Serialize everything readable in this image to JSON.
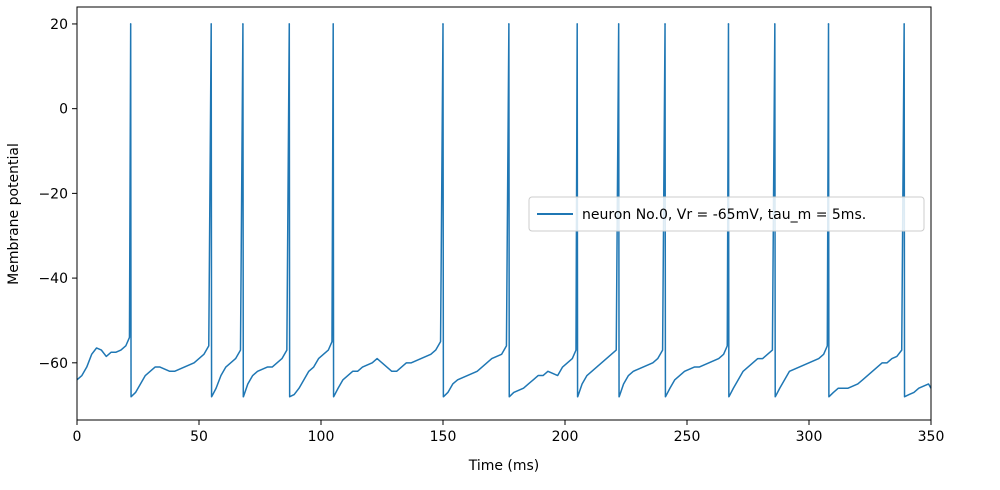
{
  "chart_data": {
    "type": "line",
    "title": "",
    "xlabel": "Time (ms)",
    "ylabel": "Membrane potential",
    "xlim": [
      0,
      350
    ],
    "ylim": [
      -73.5,
      24
    ],
    "xticks": [
      0,
      50,
      100,
      150,
      200,
      250,
      300,
      350
    ],
    "yticks": [
      -60,
      -40,
      -20,
      0,
      20
    ],
    "xtick_labels": [
      "0",
      "50",
      "100",
      "150",
      "200",
      "250",
      "300",
      "350"
    ],
    "ytick_labels": [
      "−60",
      "−40",
      "−20",
      "0",
      "20"
    ],
    "grid": false,
    "legend_position": "center-right",
    "series": [
      {
        "name": "neuron No.0, Vr = -65mV, tau_m = 5ms.",
        "color": "#1f77b4",
        "reset_value": -68,
        "spike_peak": 20,
        "spike_times": [
          22,
          55,
          68,
          87,
          105,
          150,
          177,
          205,
          222,
          241,
          267,
          286,
          308,
          339
        ],
        "subthreshold": [
          [
            0,
            -64
          ],
          [
            2,
            -63
          ],
          [
            4,
            -61
          ],
          [
            6,
            -58
          ],
          [
            8,
            -56.5
          ],
          [
            10,
            -57
          ],
          [
            12,
            -58.5
          ],
          [
            14,
            -57.5
          ],
          [
            16,
            -57.5
          ],
          [
            18,
            -57
          ],
          [
            20,
            -56
          ],
          [
            21.5,
            -54
          ],
          [
            22.2,
            -68
          ],
          [
            24,
            -67
          ],
          [
            26,
            -65
          ],
          [
            28,
            -63
          ],
          [
            30,
            -62
          ],
          [
            32,
            -61
          ],
          [
            34,
            -61
          ],
          [
            36,
            -61.5
          ],
          [
            38,
            -62
          ],
          [
            40,
            -62
          ],
          [
            42,
            -61.5
          ],
          [
            44,
            -61
          ],
          [
            46,
            -60.5
          ],
          [
            48,
            -60
          ],
          [
            50,
            -59
          ],
          [
            52,
            -58
          ],
          [
            54,
            -56
          ],
          [
            55.2,
            -68
          ],
          [
            57,
            -66
          ],
          [
            59,
            -63
          ],
          [
            61,
            -61
          ],
          [
            63,
            -60
          ],
          [
            65,
            -59
          ],
          [
            67,
            -57
          ],
          [
            68.2,
            -68
          ],
          [
            70,
            -65
          ],
          [
            72,
            -63
          ],
          [
            74,
            -62
          ],
          [
            76,
            -61.5
          ],
          [
            78,
            -61
          ],
          [
            80,
            -61
          ],
          [
            82,
            -60
          ],
          [
            84,
            -59
          ],
          [
            86,
            -57
          ],
          [
            87.2,
            -68
          ],
          [
            89,
            -67.5
          ],
          [
            91,
            -66
          ],
          [
            93,
            -64
          ],
          [
            95,
            -62
          ],
          [
            97,
            -61
          ],
          [
            99,
            -59
          ],
          [
            101,
            -58
          ],
          [
            103,
            -57
          ],
          [
            104.5,
            -55
          ],
          [
            105.2,
            -68
          ],
          [
            107,
            -66
          ],
          [
            109,
            -64
          ],
          [
            111,
            -63
          ],
          [
            113,
            -62
          ],
          [
            115,
            -62
          ],
          [
            117,
            -61
          ],
          [
            119,
            -60.5
          ],
          [
            121,
            -60
          ],
          [
            123,
            -59
          ],
          [
            125,
            -60
          ],
          [
            127,
            -61
          ],
          [
            129,
            -62
          ],
          [
            131,
            -62
          ],
          [
            133,
            -61
          ],
          [
            135,
            -60
          ],
          [
            137,
            -60
          ],
          [
            139,
            -59.5
          ],
          [
            141,
            -59
          ],
          [
            143,
            -58.5
          ],
          [
            145,
            -58
          ],
          [
            147,
            -57
          ],
          [
            149,
            -55
          ],
          [
            150.2,
            -68
          ],
          [
            152,
            -67
          ],
          [
            154,
            -65
          ],
          [
            156,
            -64
          ],
          [
            158,
            -63.5
          ],
          [
            160,
            -63
          ],
          [
            162,
            -62.5
          ],
          [
            164,
            -62
          ],
          [
            166,
            -61
          ],
          [
            168,
            -60
          ],
          [
            170,
            -59
          ],
          [
            172,
            -58.5
          ],
          [
            174,
            -58
          ],
          [
            176,
            -56
          ],
          [
            177.2,
            -68
          ],
          [
            179,
            -67
          ],
          [
            181,
            -66.5
          ],
          [
            183,
            -66
          ],
          [
            185,
            -65
          ],
          [
            187,
            -64
          ],
          [
            189,
            -63
          ],
          [
            191,
            -63
          ],
          [
            193,
            -62
          ],
          [
            195,
            -62.5
          ],
          [
            197,
            -63
          ],
          [
            199,
            -61
          ],
          [
            201,
            -60
          ],
          [
            203,
            -59
          ],
          [
            204.5,
            -57
          ],
          [
            205.2,
            -68
          ],
          [
            207,
            -65
          ],
          [
            209,
            -63
          ],
          [
            211,
            -62
          ],
          [
            213,
            -61
          ],
          [
            215,
            -60
          ],
          [
            217,
            -59
          ],
          [
            219,
            -58
          ],
          [
            221,
            -57
          ],
          [
            222.2,
            -68
          ],
          [
            224,
            -65
          ],
          [
            226,
            -63
          ],
          [
            228,
            -62
          ],
          [
            230,
            -61.5
          ],
          [
            232,
            -61
          ],
          [
            234,
            -60.5
          ],
          [
            236,
            -60
          ],
          [
            238,
            -59
          ],
          [
            240,
            -57
          ],
          [
            241.2,
            -68
          ],
          [
            243,
            -66
          ],
          [
            245,
            -64
          ],
          [
            247,
            -63
          ],
          [
            249,
            -62
          ],
          [
            251,
            -61.5
          ],
          [
            253,
            -61
          ],
          [
            255,
            -61
          ],
          [
            257,
            -60.5
          ],
          [
            259,
            -60
          ],
          [
            261,
            -59.5
          ],
          [
            263,
            -59
          ],
          [
            265,
            -58
          ],
          [
            266.5,
            -56
          ],
          [
            267.2,
            -68
          ],
          [
            269,
            -66
          ],
          [
            271,
            -64
          ],
          [
            273,
            -62
          ],
          [
            275,
            -61
          ],
          [
            277,
            -60
          ],
          [
            279,
            -59
          ],
          [
            281,
            -59
          ],
          [
            283,
            -58
          ],
          [
            285,
            -57
          ],
          [
            286.2,
            -68
          ],
          [
            288,
            -66
          ],
          [
            290,
            -64
          ],
          [
            292,
            -62
          ],
          [
            294,
            -61.5
          ],
          [
            296,
            -61
          ],
          [
            298,
            -60.5
          ],
          [
            300,
            -60
          ],
          [
            302,
            -59.5
          ],
          [
            304,
            -59
          ],
          [
            306,
            -58
          ],
          [
            307.5,
            -56
          ],
          [
            308.2,
            -68
          ],
          [
            310,
            -67
          ],
          [
            312,
            -66
          ],
          [
            314,
            -66
          ],
          [
            316,
            -66
          ],
          [
            318,
            -65.5
          ],
          [
            320,
            -65
          ],
          [
            322,
            -64
          ],
          [
            324,
            -63
          ],
          [
            326,
            -62
          ],
          [
            328,
            -61
          ],
          [
            330,
            -60
          ],
          [
            332,
            -60
          ],
          [
            334,
            -59
          ],
          [
            336,
            -58.5
          ],
          [
            338,
            -57
          ],
          [
            339.2,
            -68
          ],
          [
            341,
            -67.5
          ],
          [
            343,
            -67
          ],
          [
            345,
            -66
          ],
          [
            347,
            -65.5
          ],
          [
            349,
            -65
          ],
          [
            350,
            -66
          ]
        ]
      }
    ]
  }
}
